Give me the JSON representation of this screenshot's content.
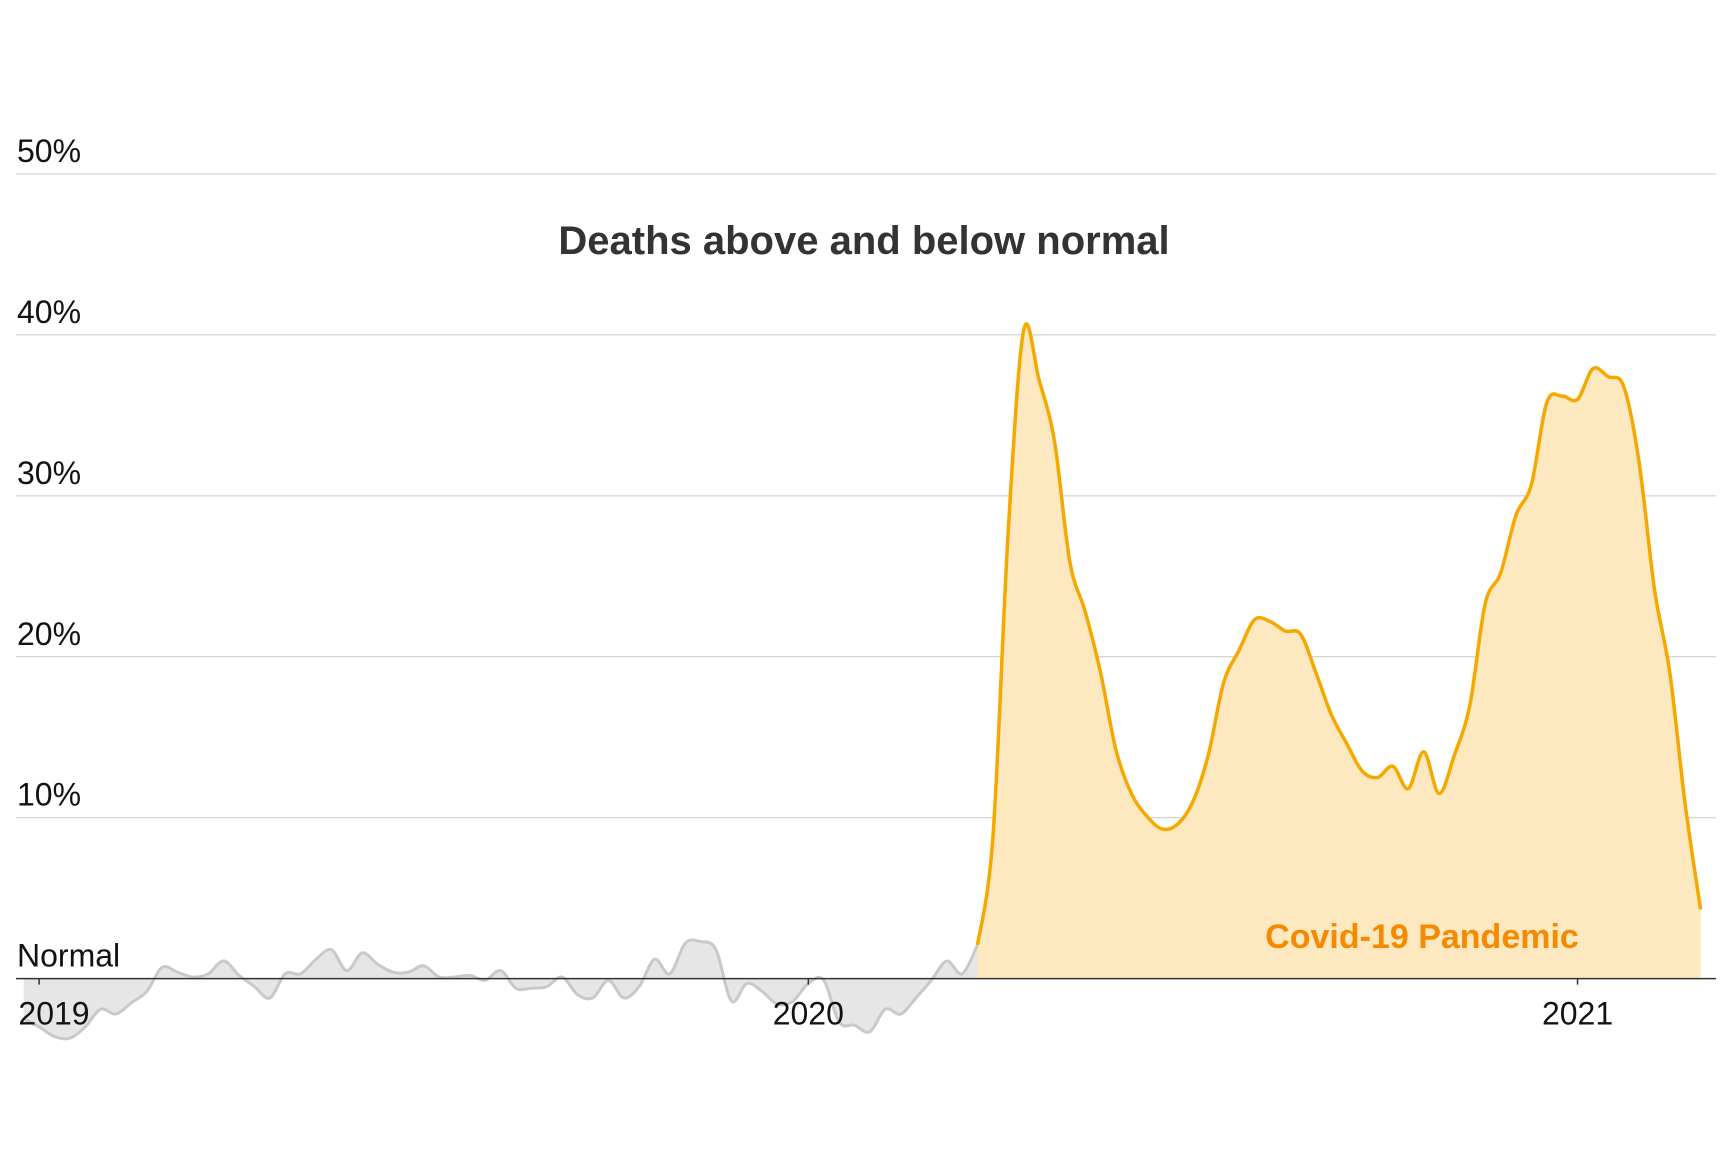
{
  "chart_data": {
    "type": "area",
    "title": "Deaths above and below normal",
    "x": [
      2018.98,
      2019.0,
      2019.02,
      2019.04,
      2019.06,
      2019.08,
      2019.1,
      2019.12,
      2019.14,
      2019.16,
      2019.18,
      2019.2,
      2019.22,
      2019.24,
      2019.26,
      2019.28,
      2019.3,
      2019.32,
      2019.34,
      2019.36,
      2019.38,
      2019.4,
      2019.42,
      2019.44,
      2019.46,
      2019.48,
      2019.5,
      2019.52,
      2019.54,
      2019.56,
      2019.58,
      2019.6,
      2019.62,
      2019.64,
      2019.66,
      2019.68,
      2019.7,
      2019.72,
      2019.74,
      2019.76,
      2019.78,
      2019.8,
      2019.82,
      2019.84,
      2019.86,
      2019.88,
      2019.9,
      2019.92,
      2019.94,
      2019.96,
      2019.98,
      2020.0,
      2020.02,
      2020.04,
      2020.06,
      2020.08,
      2020.1,
      2020.12,
      2020.14,
      2020.16,
      2020.18,
      2020.2,
      2020.22,
      2020.24,
      2020.26,
      2020.28,
      2020.3,
      2020.32,
      2020.34,
      2020.36,
      2020.38,
      2020.4,
      2020.42,
      2020.44,
      2020.46,
      2020.48,
      2020.5,
      2020.52,
      2020.54,
      2020.56,
      2020.58,
      2020.6,
      2020.62,
      2020.64,
      2020.66,
      2020.68,
      2020.7,
      2020.72,
      2020.74,
      2020.76,
      2020.78,
      2020.8,
      2020.82,
      2020.84,
      2020.86,
      2020.88,
      2020.9,
      2020.92,
      2020.94,
      2020.96,
      2020.98,
      2021.0,
      2021.02,
      2021.04,
      2021.06,
      2021.08,
      2021.1,
      2021.12,
      2021.14,
      2021.16
    ],
    "series": [
      {
        "color": "#c9c9c9",
        "fill": "#e6e6e6",
        "values": [
          -2.5,
          -3.0,
          -3.6,
          -3.7,
          -3.0,
          -1.9,
          -2.2,
          -1.5,
          -0.8,
          0.7,
          0.4,
          0.1,
          0.3,
          1.1,
          0.2,
          -0.5,
          -1.2,
          0.3,
          0.3,
          1.2,
          1.8,
          0.5,
          1.6,
          0.9,
          0.4,
          0.4,
          0.8,
          0.1,
          0.1,
          0.2,
          -0.1,
          0.5,
          -0.6,
          -0.6,
          -0.5,
          0.1,
          -1.0,
          -1.2,
          -0.1,
          -1.2,
          -0.5,
          1.2,
          0.3,
          2.2,
          2.3,
          1.8,
          -1.4,
          -0.3,
          -0.8,
          -1.6,
          -1.4,
          -0.3,
          -0.1,
          -2.7,
          -2.9,
          -3.3,
          -1.9,
          -2.2,
          -1.2,
          -0.1,
          1.1,
          0.3,
          2.1,
          null,
          null,
          null,
          null,
          null,
          null,
          null,
          null,
          null,
          null,
          null,
          null,
          null,
          null,
          null,
          null,
          null,
          null,
          null,
          null,
          null,
          null,
          null,
          null,
          null,
          null,
          null,
          null,
          null,
          null,
          null,
          null,
          null,
          null,
          null,
          null,
          null,
          null,
          null,
          null,
          null,
          null,
          null,
          null,
          null,
          null,
          null
        ]
      },
      {
        "name": "Covid-19 Pandemic",
        "color": "#f5a800",
        "fill": "#fde8c0",
        "label_color": "#f58a00",
        "values": [
          null,
          null,
          null,
          null,
          null,
          null,
          null,
          null,
          null,
          null,
          null,
          null,
          null,
          null,
          null,
          null,
          null,
          null,
          null,
          null,
          null,
          null,
          null,
          null,
          null,
          null,
          null,
          null,
          null,
          null,
          null,
          null,
          null,
          null,
          null,
          null,
          null,
          null,
          null,
          null,
          null,
          null,
          null,
          null,
          null,
          null,
          null,
          null,
          null,
          null,
          null,
          null,
          null,
          null,
          null,
          null,
          null,
          null,
          null,
          null,
          null,
          null,
          2.1,
          8.8,
          27.9,
          40.3,
          37.2,
          33.4,
          25.9,
          22.8,
          19.0,
          14.2,
          11.5,
          10.1,
          9.3,
          9.6,
          11.0,
          13.9,
          18.4,
          20.4,
          22.3,
          22.2,
          21.6,
          21.4,
          19.0,
          16.4,
          14.6,
          12.9,
          12.5,
          13.2,
          11.8,
          14.1,
          11.5,
          13.9,
          17.0,
          23.3,
          25.2,
          28.8,
          30.7,
          35.8,
          36.2,
          36.0,
          37.9,
          37.4,
          36.8,
          32.1,
          24.2,
          19.0,
          10.8,
          4.3
        ]
      }
    ],
    "xlim": [
      2018.97,
      2021.18
    ],
    "xticks": [
      2019,
      2020,
      2021
    ],
    "ylim": [
      -4,
      50
    ],
    "yticks": [
      {
        "value": 0,
        "label": "Normal"
      },
      {
        "value": 10,
        "label": "10%"
      },
      {
        "value": 20,
        "label": "20%"
      },
      {
        "value": 30,
        "label": "30%"
      },
      {
        "value": 40,
        "label": "40%"
      },
      {
        "value": 50,
        "label": "50%"
      }
    ],
    "grid": true
  }
}
